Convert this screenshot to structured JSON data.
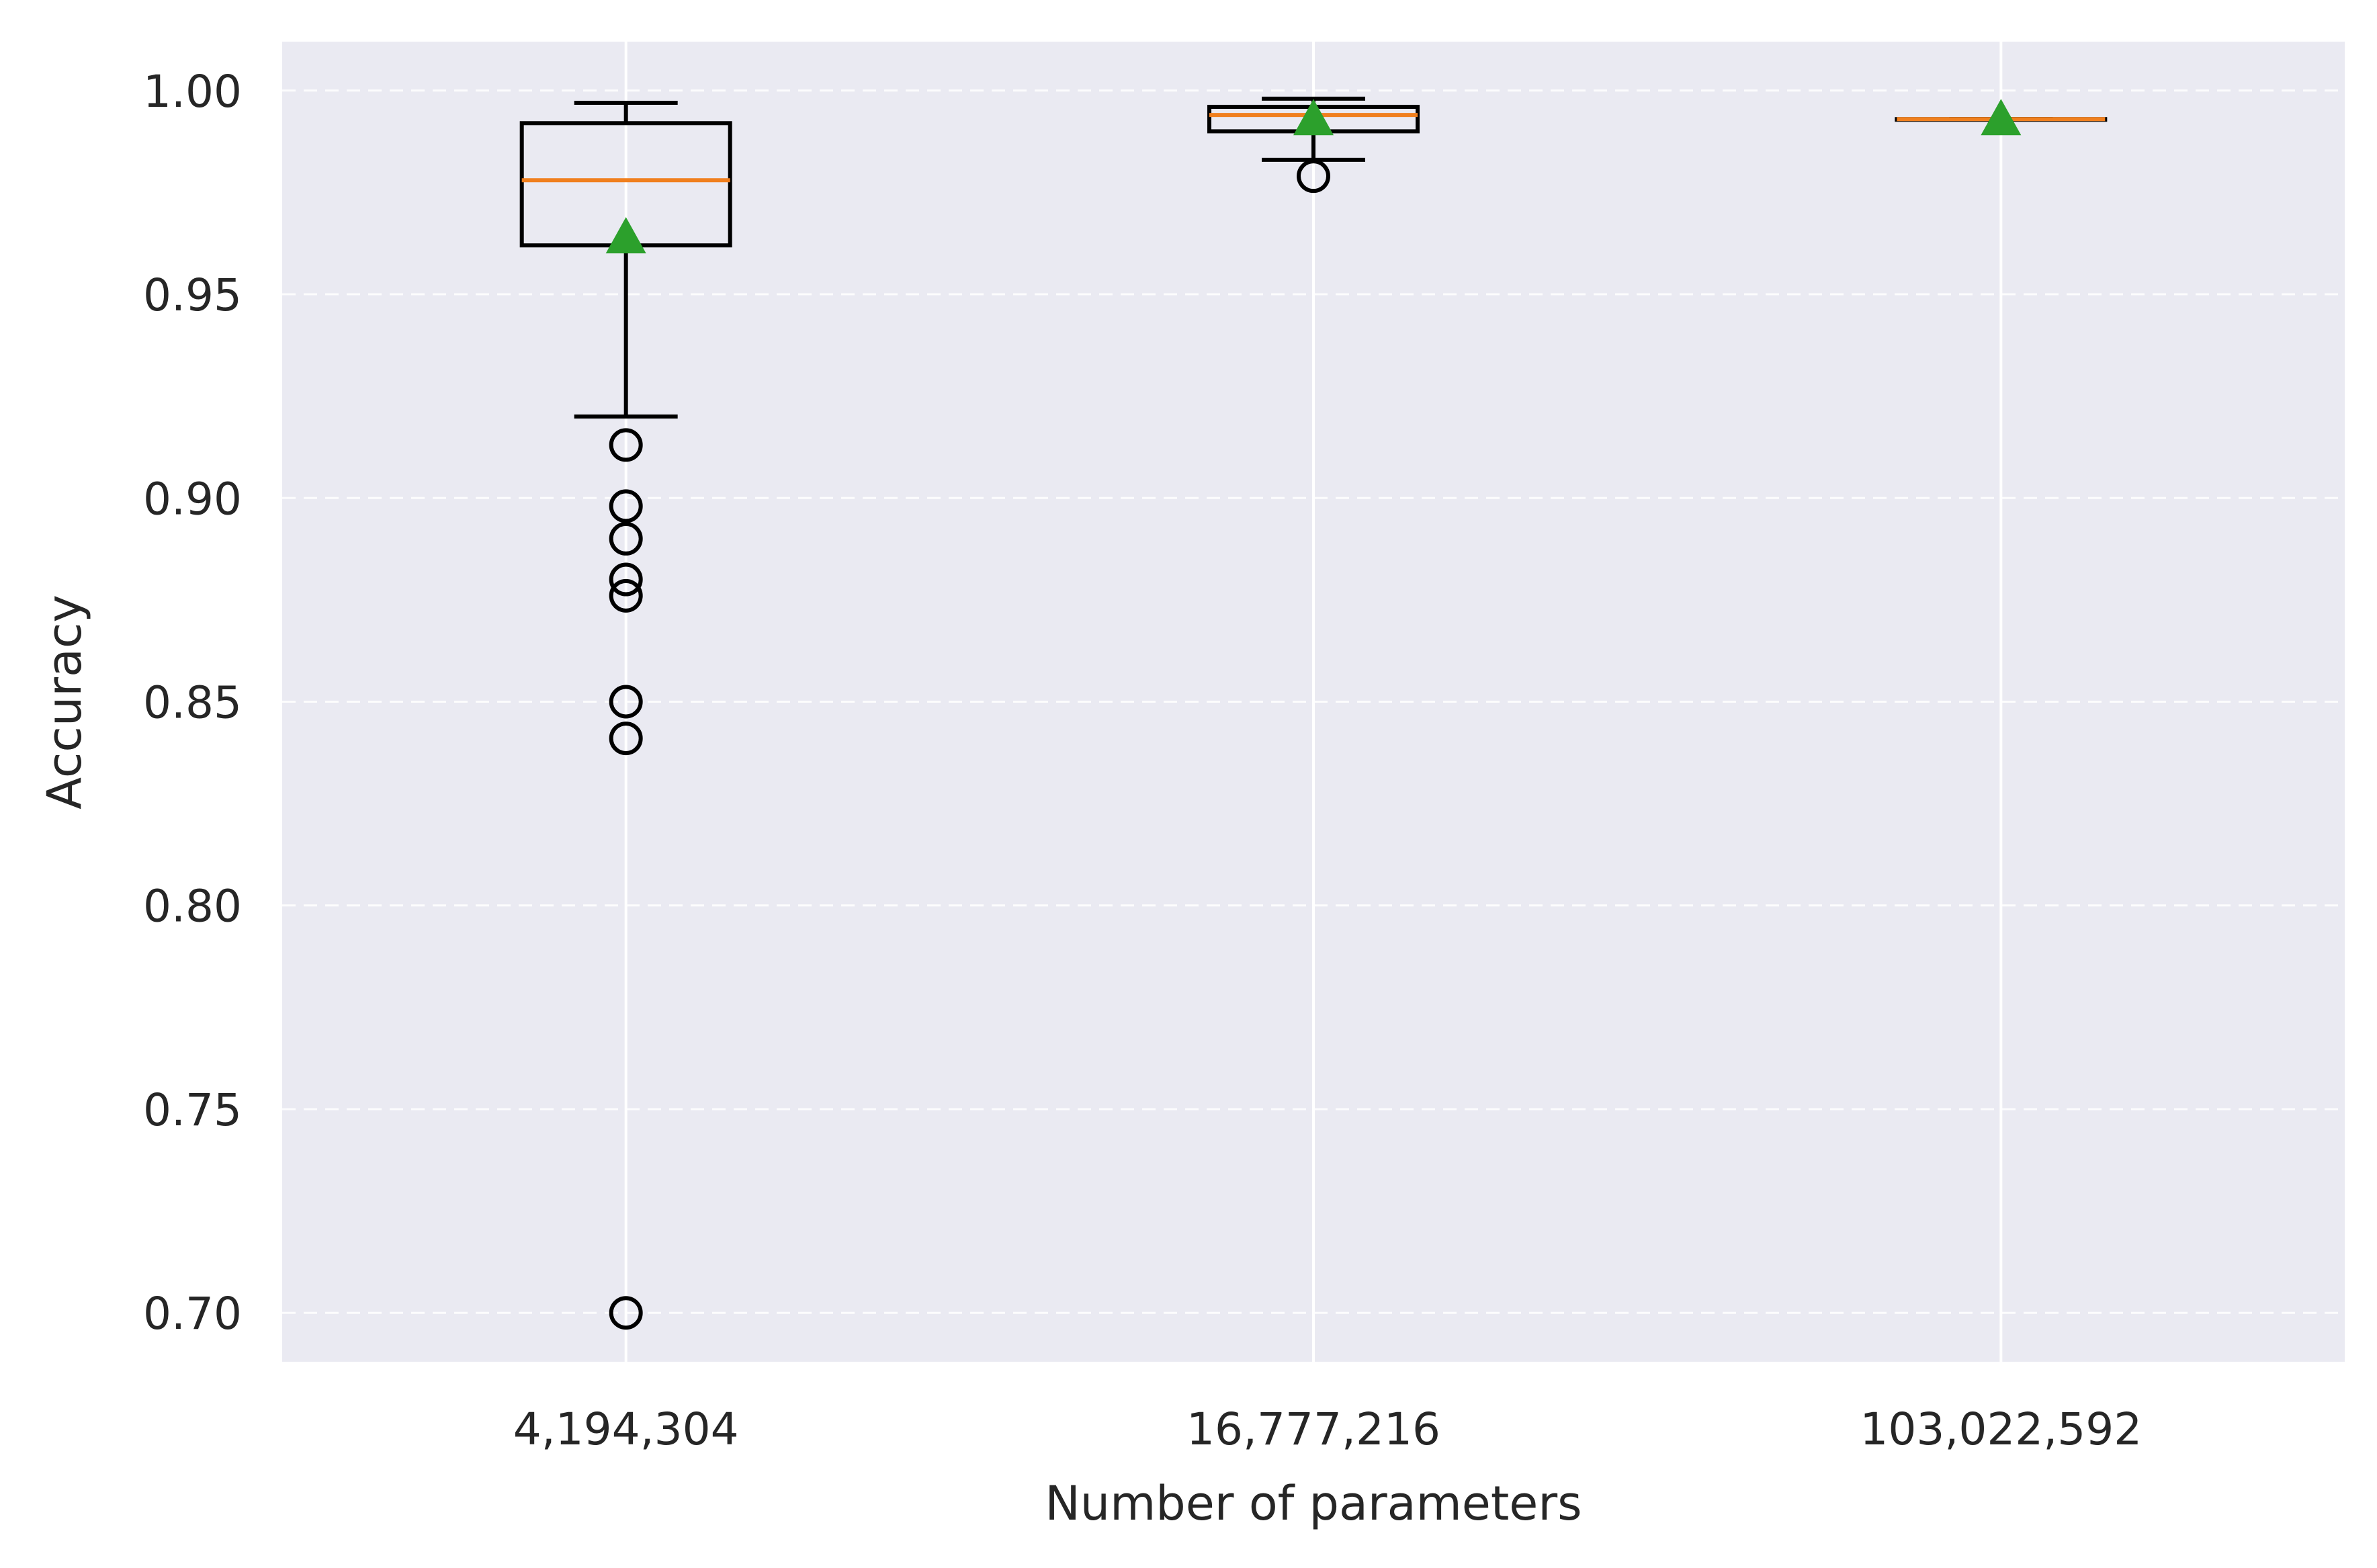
{
  "chart_data": {
    "type": "box",
    "title": "",
    "xlabel": "Number of parameters",
    "ylabel": "Accuracy",
    "ylim": [
      0.688,
      1.012
    ],
    "yticks": [
      "0.70",
      "0.75",
      "0.80",
      "0.85",
      "0.90",
      "0.95",
      "1.00"
    ],
    "ytick_values": [
      0.7,
      0.75,
      0.8,
      0.85,
      0.9,
      0.95,
      1.0
    ],
    "categories": [
      "4,194,304",
      "16,777,216",
      "103,022,592"
    ],
    "grid": "y-dashed, x-solid",
    "boxes": [
      {
        "category": "4,194,304",
        "whisker_low": 0.92,
        "q1": 0.962,
        "median": 0.978,
        "q3": 0.992,
        "whisker_high": 0.997,
        "mean": 0.964,
        "outliers": [
          0.913,
          0.898,
          0.89,
          0.88,
          0.876,
          0.85,
          0.841,
          0.7
        ]
      },
      {
        "category": "16,777,216",
        "whisker_low": 0.983,
        "q1": 0.99,
        "median": 0.994,
        "q3": 0.996,
        "whisker_high": 0.998,
        "mean": 0.993,
        "outliers": [
          0.979
        ]
      },
      {
        "category": "103,022,592",
        "whisker_low": 0.993,
        "q1": 0.993,
        "median": 0.993,
        "q3": 0.993,
        "whisker_high": 0.993,
        "mean": 0.993,
        "outliers": []
      }
    ],
    "colors": {
      "background": "#eaeaf2",
      "grid": "#ffffff",
      "box": "#000000",
      "median": "#f07f1e",
      "mean": "#2ca02c",
      "outlier": "#000000"
    }
  }
}
